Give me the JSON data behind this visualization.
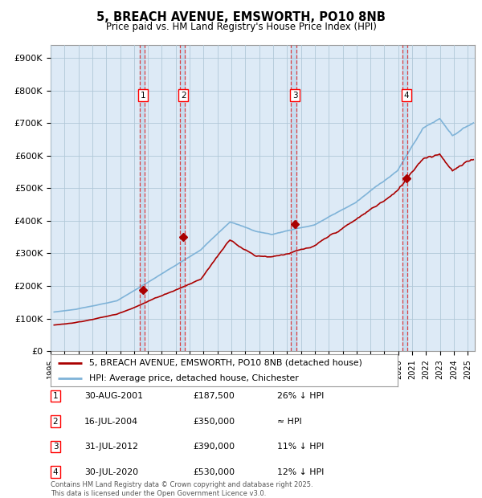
{
  "title": "5, BREACH AVENUE, EMSWORTH, PO10 8NB",
  "subtitle": "Price paid vs. HM Land Registry's House Price Index (HPI)",
  "ylabel_ticks": [
    "£0",
    "£100K",
    "£200K",
    "£300K",
    "£400K",
    "£500K",
    "£600K",
    "£700K",
    "£800K",
    "£900K"
  ],
  "ytick_values": [
    0,
    100000,
    200000,
    300000,
    400000,
    500000,
    600000,
    700000,
    800000,
    900000
  ],
  "ylim": [
    0,
    940000
  ],
  "xlim_start": 1995.3,
  "xlim_end": 2025.5,
  "hpi_color": "#7fb3d8",
  "price_color": "#aa0000",
  "background_color": "#ffffff",
  "plot_bg_color": "#ddeaf6",
  "sale_shade_color": "#c5ddf0",
  "grid_color": "#b0c8d8",
  "vline_color": "#dd2222",
  "sale_points": [
    {
      "year": 2001.66,
      "price": 187500,
      "label": "1"
    },
    {
      "year": 2004.54,
      "price": 350000,
      "label": "2"
    },
    {
      "year": 2012.58,
      "price": 390000,
      "label": "3"
    },
    {
      "year": 2020.58,
      "price": 530000,
      "label": "4"
    }
  ],
  "vline_pairs": [
    [
      2001.42,
      2001.75
    ],
    [
      2004.29,
      2004.62
    ],
    [
      2012.29,
      2012.67
    ],
    [
      2020.29,
      2020.67
    ]
  ],
  "legend_entries": [
    "5, BREACH AVENUE, EMSWORTH, PO10 8NB (detached house)",
    "HPI: Average price, detached house, Chichester"
  ],
  "table_rows": [
    {
      "num": "1",
      "date": "30-AUG-2001",
      "price": "£187,500",
      "hpi": "26% ↓ HPI"
    },
    {
      "num": "2",
      "date": "16-JUL-2004",
      "price": "£350,000",
      "hpi": "≈ HPI"
    },
    {
      "num": "3",
      "date": "31-JUL-2012",
      "price": "£390,000",
      "hpi": "11% ↓ HPI"
    },
    {
      "num": "4",
      "date": "30-JUL-2020",
      "price": "£530,000",
      "hpi": "12% ↓ HPI"
    }
  ],
  "footer": "Contains HM Land Registry data © Crown copyright and database right 2025.\nThis data is licensed under the Open Government Licence v3.0.",
  "xtick_years": [
    1995,
    1996,
    1997,
    1998,
    1999,
    2000,
    2001,
    2002,
    2003,
    2004,
    2005,
    2006,
    2007,
    2008,
    2009,
    2010,
    2011,
    2012,
    2013,
    2014,
    2015,
    2016,
    2017,
    2018,
    2019,
    2020,
    2021,
    2022,
    2023,
    2024,
    2025
  ]
}
